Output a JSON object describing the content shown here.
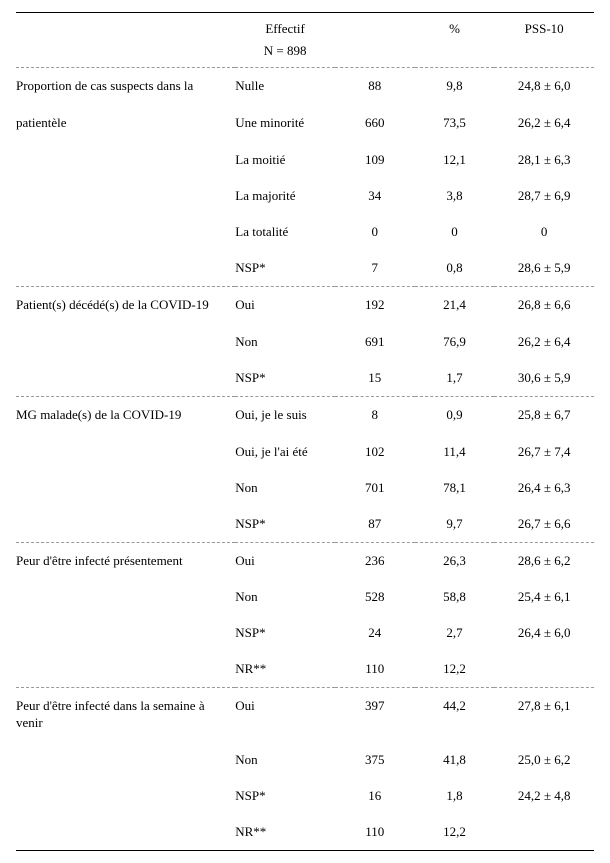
{
  "header": {
    "effectif": "Effectif",
    "n_label": "N = 898",
    "pct": "%",
    "pss": "PSS-10"
  },
  "sections": [
    {
      "desc_line1": "Proportion de cas suspects dans la",
      "desc_line2": "patientèle",
      "rows": [
        {
          "level": "Nulle",
          "n": "88",
          "pct": "9,8",
          "pss": "24,8 ± 6,0"
        },
        {
          "level": "Une minorité",
          "n": "660",
          "pct": "73,5",
          "pss": "26,2 ± 6,4"
        },
        {
          "level": "La moitié",
          "n": "109",
          "pct": "12,1",
          "pss": "28,1 ± 6,3"
        },
        {
          "level": "La majorité",
          "n": "34",
          "pct": "3,8",
          "pss": "28,7 ± 6,9"
        },
        {
          "level": "La totalité",
          "n": "0",
          "pct": "0",
          "pss": "0"
        },
        {
          "level": "NSP*",
          "n": "7",
          "pct": "0,8",
          "pss": "28,6 ± 5,9"
        }
      ]
    },
    {
      "desc_line1": "Patient(s) décédé(s) de la COVID-19",
      "desc_line2": "",
      "rows": [
        {
          "level": "Oui",
          "n": "192",
          "pct": "21,4",
          "pss": "26,8 ± 6,6"
        },
        {
          "level": "Non",
          "n": "691",
          "pct": "76,9",
          "pss": "26,2 ± 6,4"
        },
        {
          "level": "NSP*",
          "n": "15",
          "pct": "1,7",
          "pss": "30,6 ± 5,9"
        }
      ]
    },
    {
      "desc_line1": "MG malade(s) de la COVID-19",
      "desc_line2": "",
      "rows": [
        {
          "level": "Oui, je le suis",
          "n": "8",
          "pct": "0,9",
          "pss": "25,8 ± 6,7"
        },
        {
          "level": "Oui, je l'ai été",
          "n": "102",
          "pct": "11,4",
          "pss": "26,7 ± 7,4"
        },
        {
          "level": "Non",
          "n": "701",
          "pct": "78,1",
          "pss": "26,4 ± 6,3"
        },
        {
          "level": "NSP*",
          "n": "87",
          "pct": "9,7",
          "pss": "26,7 ± 6,6"
        }
      ]
    },
    {
      "desc_line1": "Peur d'être infecté présentement",
      "desc_line2": "",
      "rows": [
        {
          "level": "Oui",
          "n": "236",
          "pct": "26,3",
          "pss": "28,6 ± 6,2"
        },
        {
          "level": "Non",
          "n": "528",
          "pct": "58,8",
          "pss": "25,4 ± 6,1"
        },
        {
          "level": "NSP*",
          "n": "24",
          "pct": "2,7",
          "pss": "26,4 ± 6,0"
        },
        {
          "level": "NR**",
          "n": "110",
          "pct": "12,2",
          "pss": ""
        }
      ]
    },
    {
      "desc_line1": "Peur d'être infecté dans la semaine à venir",
      "desc_line2": "",
      "rows": [
        {
          "level": "Oui",
          "n": "397",
          "pct": "44,2",
          "pss": "27,8 ± 6,1"
        },
        {
          "level": "Non",
          "n": "375",
          "pct": "41,8",
          "pss": "25,0 ± 6,2"
        },
        {
          "level": "NSP*",
          "n": "16",
          "pct": "1,8",
          "pss": "24,2 ± 4,8"
        },
        {
          "level": "NR**",
          "n": "110",
          "pct": "12,2",
          "pss": ""
        }
      ]
    }
  ]
}
